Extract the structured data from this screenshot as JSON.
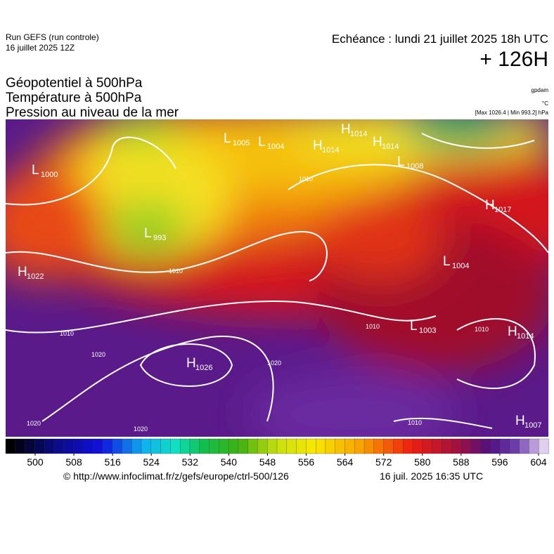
{
  "header": {
    "run": "Run GEFS (run controle)",
    "run_date": "16 juillet 2025 12Z",
    "valid": "Echéance : lundi 21 juillet 2025 18h UTC",
    "lead": "+ 126H",
    "fields": [
      "Géopotentiel à 500hPa",
      "Température à 500hPa",
      "Pression au niveau de la mer"
    ],
    "units": [
      "gpdam",
      "°C"
    ],
    "extremes": "[Max 1026.4 | Min 993.2] hPa"
  },
  "map": {
    "centers": [
      {
        "letter": "L",
        "value": "1000"
      },
      {
        "letter": "L",
        "value": "993"
      },
      {
        "letter": "L",
        "value": "1005"
      },
      {
        "letter": "L",
        "value": "1004"
      },
      {
        "letter": "H",
        "value": "1014"
      },
      {
        "letter": "H",
        "value": "1014"
      },
      {
        "letter": "H",
        "value": "1014"
      },
      {
        "letter": "L",
        "value": "1008"
      },
      {
        "letter": "H",
        "value": "1017"
      },
      {
        "letter": "L",
        "value": "1004"
      },
      {
        "letter": "H",
        "value": "1022"
      },
      {
        "letter": "H",
        "value": "1026"
      },
      {
        "letter": "L",
        "value": "1003"
      },
      {
        "letter": "H",
        "value": "1014"
      },
      {
        "letter": "H",
        "value": "1007"
      }
    ],
    "isobar_labels": [
      "1010",
      "1010",
      "1010",
      "1010",
      "1010",
      "1010",
      "1020",
      "1020",
      "1020",
      "1020"
    ]
  },
  "legend": {
    "ticks": [
      500,
      508,
      516,
      524,
      532,
      540,
      548,
      556,
      564,
      572,
      580,
      588,
      596,
      604
    ]
  },
  "footer": {
    "url": "© http://www.infoclimat.fr/z/gefs/europe/ctrl-500/126",
    "generated": "16 juil. 2025 16:35 UTC"
  }
}
